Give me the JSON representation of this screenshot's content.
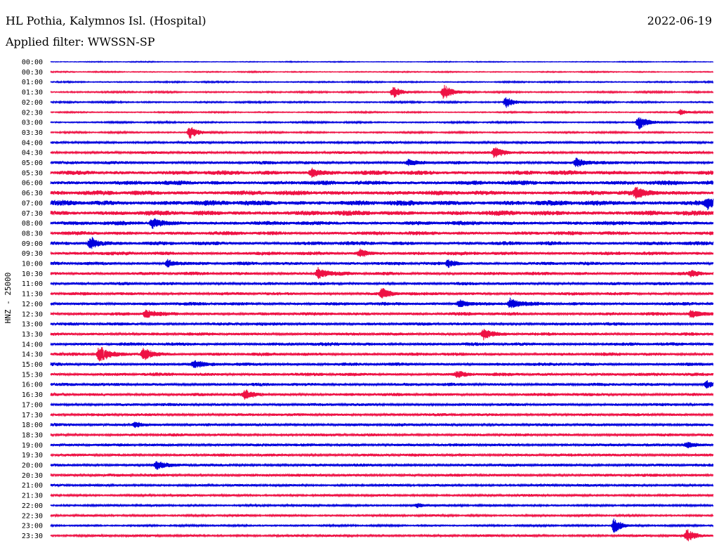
{
  "header": {
    "station": "HL Pothia, Kalymnos Isl. (Hospital)",
    "date": "2022-06-19",
    "filter": "Applied filter: WWSSN-SP"
  },
  "chart_data": {
    "type": "line",
    "ylabel": "HNZ - 25000",
    "row_labels": [
      "00:00",
      "00:30",
      "01:00",
      "01:30",
      "02:00",
      "02:30",
      "03:00",
      "03:30",
      "04:00",
      "04:30",
      "05:00",
      "05:30",
      "06:00",
      "06:30",
      "07:00",
      "07:30",
      "08:00",
      "08:30",
      "09:00",
      "09:30",
      "10:00",
      "10:30",
      "11:00",
      "11:30",
      "12:00",
      "12:30",
      "13:00",
      "13:30",
      "14:00",
      "14:30",
      "15:00",
      "15:30",
      "16:00",
      "16:30",
      "17:00",
      "17:30",
      "18:00",
      "18:30",
      "19:00",
      "19:30",
      "20:00",
      "20:30",
      "21:00",
      "21:30",
      "22:00",
      "22:30",
      "23:00",
      "23:30"
    ],
    "colors": [
      "#0000dd",
      "#ee1144"
    ],
    "minutes_per_row": 30,
    "noise_level": [
      0.08,
      0.1,
      0.12,
      0.14,
      0.14,
      0.12,
      0.14,
      0.14,
      0.2,
      0.22,
      0.26,
      0.36,
      0.36,
      0.38,
      0.42,
      0.4,
      0.34,
      0.32,
      0.32,
      0.3,
      0.28,
      0.28,
      0.26,
      0.26,
      0.28,
      0.28,
      0.26,
      0.26,
      0.28,
      0.28,
      0.28,
      0.28,
      0.26,
      0.26,
      0.24,
      0.24,
      0.24,
      0.24,
      0.24,
      0.24,
      0.24,
      0.24,
      0.2,
      0.2,
      0.18,
      0.18,
      0.16,
      0.2
    ],
    "events": [
      {
        "row": 3,
        "minute": 15.5,
        "amplitude": 1.4
      },
      {
        "row": 3,
        "minute": 17.8,
        "amplitude": 1.6
      },
      {
        "row": 4,
        "minute": 20.6,
        "amplitude": 1.2
      },
      {
        "row": 5,
        "minute": 28.5,
        "amplitude": 0.6
      },
      {
        "row": 6,
        "minute": 26.6,
        "amplitude": 1.6
      },
      {
        "row": 7,
        "minute": 6.3,
        "amplitude": 1.4
      },
      {
        "row": 9,
        "minute": 20.1,
        "amplitude": 1.2
      },
      {
        "row": 10,
        "minute": 23.8,
        "amplitude": 1.0
      },
      {
        "row": 10,
        "minute": 16.2,
        "amplitude": 0.5
      },
      {
        "row": 11,
        "minute": 11.8,
        "amplitude": 0.9
      },
      {
        "row": 13,
        "minute": 26.5,
        "amplitude": 1.1
      },
      {
        "row": 14,
        "minute": 29.7,
        "amplitude": 1.2
      },
      {
        "row": 16,
        "minute": 4.6,
        "amplitude": 1.0
      },
      {
        "row": 18,
        "minute": 1.8,
        "amplitude": 1.4
      },
      {
        "row": 19,
        "minute": 14.0,
        "amplitude": 0.8
      },
      {
        "row": 20,
        "minute": 5.3,
        "amplitude": 0.8
      },
      {
        "row": 20,
        "minute": 18.0,
        "amplitude": 0.7
      },
      {
        "row": 21,
        "minute": 12.1,
        "amplitude": 1.3
      },
      {
        "row": 21,
        "minute": 29.0,
        "amplitude": 0.6
      },
      {
        "row": 23,
        "minute": 15.0,
        "amplitude": 1.1
      },
      {
        "row": 24,
        "minute": 20.8,
        "amplitude": 1.1
      },
      {
        "row": 24,
        "minute": 18.5,
        "amplitude": 0.9
      },
      {
        "row": 25,
        "minute": 4.3,
        "amplitude": 0.9
      },
      {
        "row": 25,
        "minute": 29.0,
        "amplitude": 0.8
      },
      {
        "row": 27,
        "minute": 19.6,
        "amplitude": 1.2
      },
      {
        "row": 29,
        "minute": 2.2,
        "amplitude": 1.8
      },
      {
        "row": 29,
        "minute": 4.2,
        "amplitude": 1.4
      },
      {
        "row": 30,
        "minute": 6.5,
        "amplitude": 0.7
      },
      {
        "row": 31,
        "minute": 18.4,
        "amplitude": 0.7
      },
      {
        "row": 32,
        "minute": 29.7,
        "amplitude": 0.8
      },
      {
        "row": 33,
        "minute": 8.8,
        "amplitude": 0.9
      },
      {
        "row": 36,
        "minute": 3.8,
        "amplitude": 0.7
      },
      {
        "row": 38,
        "minute": 28.8,
        "amplitude": 0.7
      },
      {
        "row": 40,
        "minute": 4.8,
        "amplitude": 0.9
      },
      {
        "row": 44,
        "minute": 16.6,
        "amplitude": 0.5
      },
      {
        "row": 46,
        "minute": 25.5,
        "amplitude": 1.6
      },
      {
        "row": 47,
        "minute": 28.8,
        "amplitude": 1.3
      }
    ]
  }
}
